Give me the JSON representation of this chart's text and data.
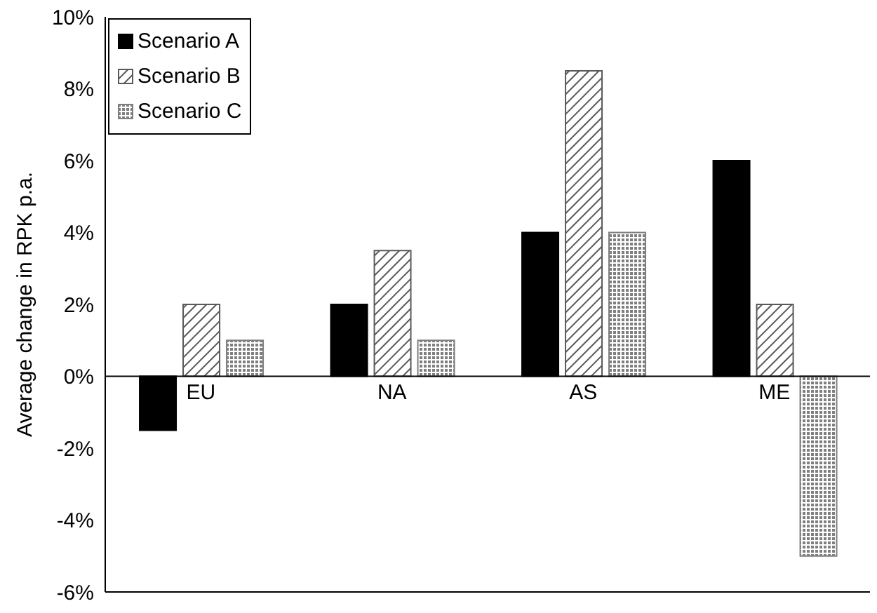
{
  "chart_data": {
    "type": "bar",
    "ylabel": "Average change in RPK p.a.",
    "categories": [
      "EU",
      "NA",
      "AS",
      "ME"
    ],
    "series": [
      {
        "name": "Scenario A",
        "color": "#000000",
        "values": [
          -1.5,
          2,
          4,
          6
        ]
      },
      {
        "name": "Scenario B",
        "color": "#595959",
        "values": [
          2,
          3.5,
          8.5,
          2
        ]
      },
      {
        "name": "Scenario C",
        "color": "#7f7f7f",
        "values": [
          1,
          1,
          4,
          -5
        ]
      }
    ],
    "ylim": [
      -6,
      10
    ],
    "yticks": [
      {
        "value": -6,
        "label": "-6%"
      },
      {
        "value": -4,
        "label": "-4%"
      },
      {
        "value": -2,
        "label": "-2%"
      },
      {
        "value": 0,
        "label": "0%"
      },
      {
        "value": 2,
        "label": "2%"
      },
      {
        "value": 4,
        "label": "4%"
      },
      {
        "value": 6,
        "label": "6%"
      },
      {
        "value": 8,
        "label": "8%"
      },
      {
        "value": 10,
        "label": "10%"
      }
    ],
    "legend": "top left"
  }
}
